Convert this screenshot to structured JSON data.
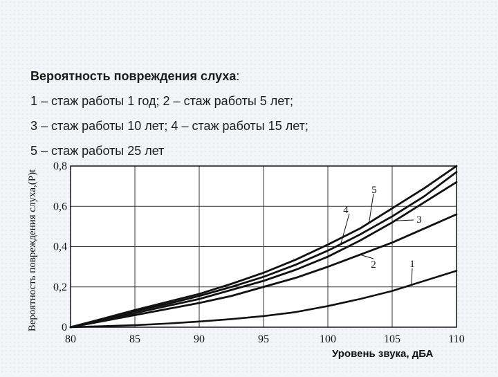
{
  "caption": {
    "title": "Вероятность повреждения слуха",
    "title_colon": ":",
    "line1": "1 – стаж работы 1 год; 2 – стаж работы  5 лет;",
    "line2": "3 – стаж работы 10 лет; 4 – стаж работы 15 лет;",
    "line3": "5 – стаж работы  25 лет"
  },
  "chart_data": {
    "type": "line",
    "title": "",
    "xlabel": "Уровень звука, дБА",
    "ylabel": "Вероятность повреждения слуха,(P)t",
    "xlim": [
      80,
      110
    ],
    "ylim": [
      0,
      0.8
    ],
    "x_ticks": [
      "80",
      "85",
      "90",
      "95",
      "100",
      "105",
      "110"
    ],
    "y_ticks": [
      "0",
      "0,2",
      "0,4",
      "0,6",
      "0,8"
    ],
    "grid": true,
    "x": [
      80,
      82.5,
      85,
      87.5,
      90,
      92.5,
      95,
      97.5,
      100,
      102.5,
      105,
      107.5,
      110
    ],
    "series": [
      {
        "name": "1",
        "values": [
          0.0,
          0.005,
          0.01,
          0.018,
          0.028,
          0.04,
          0.055,
          0.075,
          0.105,
          0.14,
          0.18,
          0.23,
          0.28
        ]
      },
      {
        "name": "2",
        "values": [
          0.0,
          0.03,
          0.06,
          0.09,
          0.12,
          0.155,
          0.2,
          0.245,
          0.3,
          0.36,
          0.42,
          0.49,
          0.56
        ]
      },
      {
        "name": "3",
        "values": [
          0.0,
          0.035,
          0.07,
          0.105,
          0.14,
          0.185,
          0.23,
          0.285,
          0.35,
          0.43,
          0.52,
          0.62,
          0.72
        ]
      },
      {
        "name": "4",
        "values": [
          0.0,
          0.04,
          0.08,
          0.115,
          0.155,
          0.2,
          0.25,
          0.31,
          0.38,
          0.46,
          0.55,
          0.65,
          0.77
        ]
      },
      {
        "name": "5",
        "values": [
          0.0,
          0.042,
          0.085,
          0.125,
          0.165,
          0.215,
          0.27,
          0.335,
          0.41,
          0.49,
          0.59,
          0.69,
          0.8
        ]
      }
    ],
    "colors": {
      "line": "#111111",
      "grid": "#333333",
      "axis": "#111111"
    }
  }
}
